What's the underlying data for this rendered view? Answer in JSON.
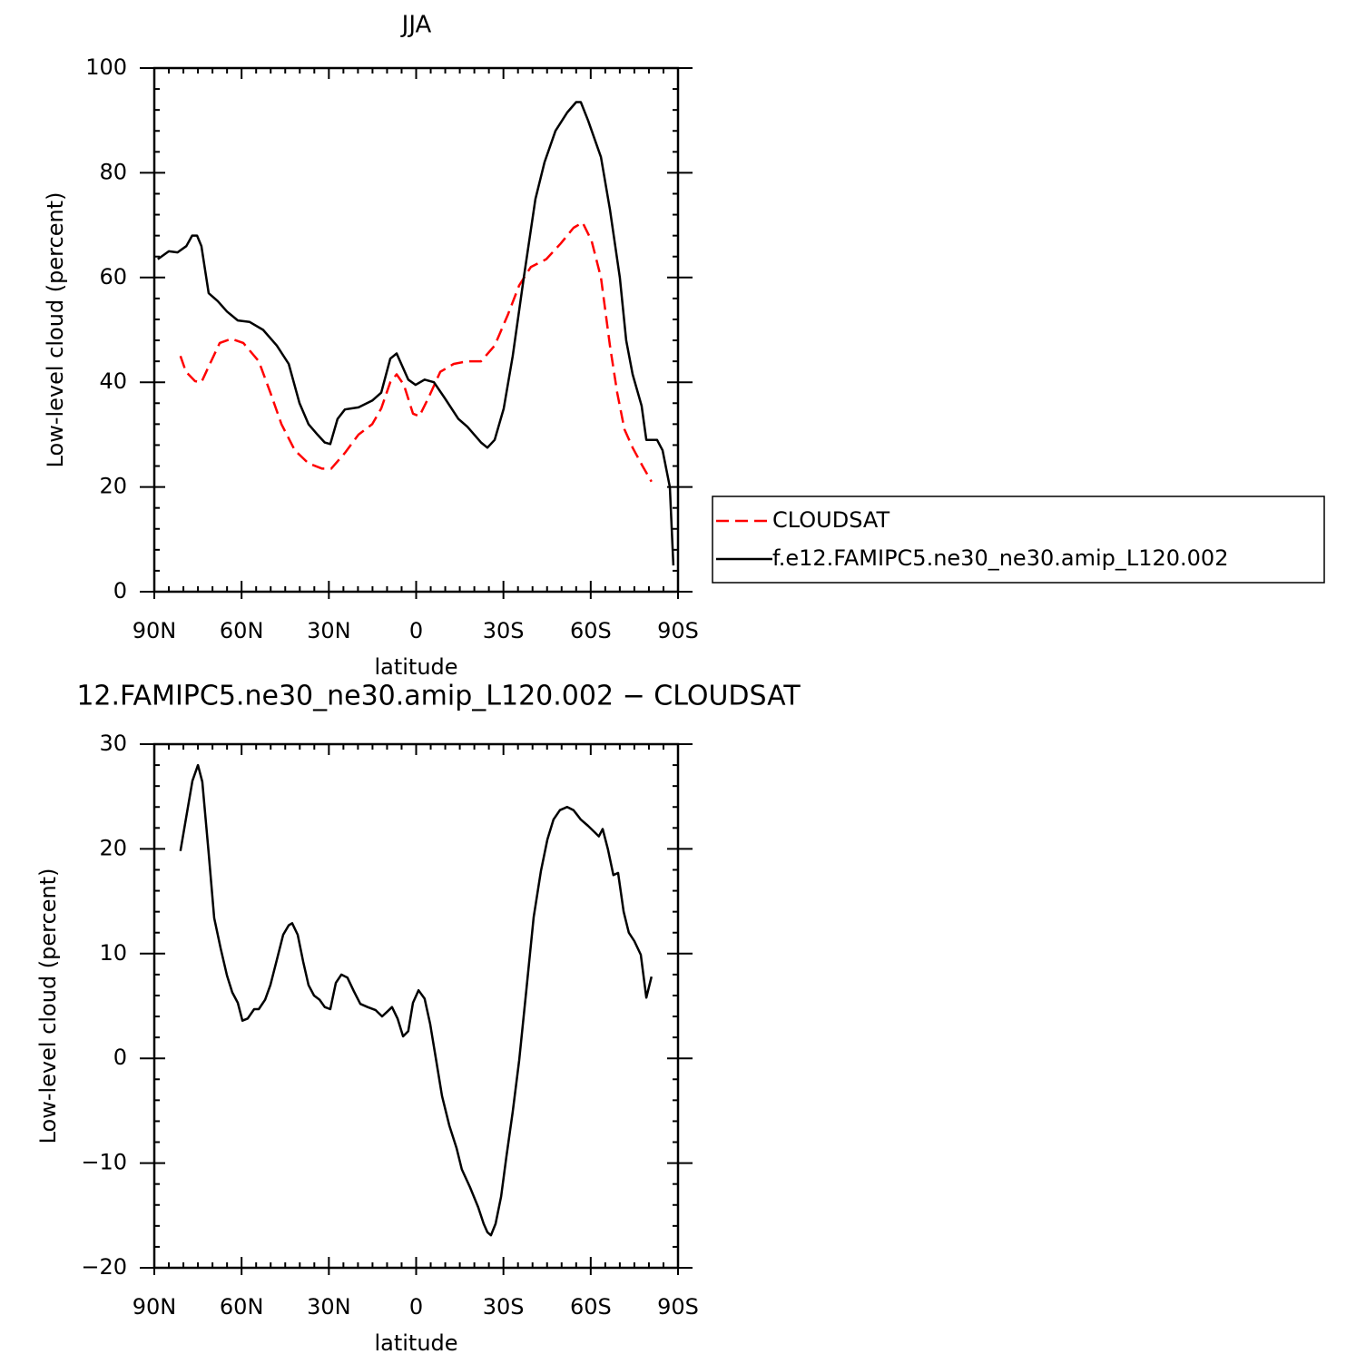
{
  "chart_data": [
    {
      "type": "line",
      "title": "JJA",
      "xlabel": "latitude",
      "ylabel": "Low-level cloud (percent)",
      "xlim": [
        90,
        -90
      ],
      "xticks": [
        {
          "value": 90,
          "label": "90N"
        },
        {
          "value": 60,
          "label": "60N"
        },
        {
          "value": 30,
          "label": "30N"
        },
        0,
        {
          "value": -30,
          "label": "30S"
        },
        {
          "value": -60,
          "label": "60S"
        },
        {
          "value": -90,
          "label": "90S"
        }
      ],
      "xminorticks": [
        85,
        80,
        75,
        70,
        65,
        55,
        50,
        45,
        40,
        35,
        25,
        20,
        15,
        10,
        5,
        -5,
        -10,
        -15,
        -20,
        -25,
        -35,
        -40,
        -45,
        -50,
        -55,
        -65,
        -70,
        -75,
        -80,
        -85
      ],
      "ylim": [
        0,
        100
      ],
      "yticks": [
        0,
        20,
        40,
        60,
        80,
        100
      ],
      "yminorticks": [
        4,
        8,
        12,
        16,
        24,
        28,
        32,
        36,
        44,
        48,
        52,
        56,
        64,
        68,
        72,
        76,
        84,
        88,
        92,
        96
      ],
      "legend": "right",
      "series": [
        {
          "name": "CLOUDSAT",
          "color": "#ff0000",
          "dashed": true,
          "x": [
            81,
            79.1,
            76,
            73.8,
            71.3,
            67.5,
            63.5,
            59.4,
            54.1,
            50.1,
            46.3,
            41.7,
            37,
            32.3,
            29.2,
            24.5,
            19.8,
            15.1,
            12,
            8.9,
            6.7,
            4.2,
            1.1,
            -1.1,
            -4.2,
            -8.3,
            -12.9,
            -17.6,
            -22.3,
            -27,
            -31.6,
            -35.4,
            -39.4,
            -44.7,
            -49.7,
            -54.1,
            -57.2,
            -60.3,
            -63.5,
            -66.6,
            -69.1,
            -71.6,
            -74.4,
            -77.8,
            -80.9
          ],
          "values": [
            45,
            42,
            40.2,
            40,
            43,
            47.5,
            48.3,
            47.5,
            44,
            38,
            32,
            27,
            24.5,
            23.5,
            23.5,
            26.5,
            30,
            32,
            35,
            40,
            41.5,
            39.5,
            34,
            33.5,
            37,
            42,
            43.5,
            44,
            44,
            47,
            53,
            58.5,
            62,
            63.5,
            66.5,
            69.5,
            70.5,
            67,
            60,
            47,
            38,
            31,
            27.5,
            24,
            21
          ]
        },
        {
          "name": "f.e12.FAMIPC5.ne30_ne30.amip_L120.002",
          "color": "#000000",
          "dashed": false,
          "x": [
            88.8,
            85,
            82,
            79,
            77,
            75.3,
            73.8,
            71.3,
            68.2,
            65,
            61.3,
            57.2,
            52.6,
            47.9,
            43.8,
            40.1,
            37,
            33.9,
            31.4,
            29.5,
            27,
            24.5,
            19.8,
            15.1,
            12,
            8.9,
            6.7,
            2.7,
            0.2,
            -2.9,
            -6.1,
            -9.8,
            -14.5,
            -17.6,
            -22.3,
            -24.5,
            -27,
            -30.1,
            -33.2,
            -37,
            -41,
            -44.1,
            -47.9,
            -51.9,
            -55,
            -56.6,
            -59.1,
            -63.5,
            -66.6,
            -70,
            -72.2,
            -74.4,
            -77.5,
            -79.1,
            -82.8,
            -84.7,
            -87.2,
            -88.4
          ],
          "values": [
            63.5,
            65,
            64.8,
            66,
            68,
            68,
            66,
            57,
            55.5,
            53.5,
            51.8,
            51.5,
            50,
            47,
            43.5,
            36,
            32,
            30,
            28.5,
            28.2,
            33,
            34.8,
            35.2,
            36.5,
            38,
            44.5,
            45.5,
            40.5,
            39.5,
            40.5,
            40,
            37,
            33,
            31.5,
            28.5,
            27.5,
            29,
            35,
            45,
            60,
            75,
            82,
            88,
            91.5,
            93.5,
            93.5,
            90,
            83,
            73,
            60,
            48,
            41.5,
            35.5,
            29,
            29,
            27,
            20,
            5
          ]
        }
      ]
    },
    {
      "type": "line",
      "title": "12.FAMIPC5.ne30_ne30.amip_L120.002 − CLOUDSAT",
      "xlabel": "latitude",
      "ylabel": "Low-level cloud (percent)",
      "xlim": [
        90,
        -90
      ],
      "xticks": [
        {
          "value": 90,
          "label": "90N"
        },
        {
          "value": 60,
          "label": "60N"
        },
        {
          "value": 30,
          "label": "30N"
        },
        0,
        {
          "value": -30,
          "label": "30S"
        },
        {
          "value": -60,
          "label": "60S"
        },
        {
          "value": -90,
          "label": "90S"
        }
      ],
      "xminorticks": [
        85,
        80,
        75,
        70,
        65,
        55,
        50,
        45,
        40,
        35,
        25,
        20,
        15,
        10,
        5,
        -5,
        -10,
        -15,
        -20,
        -25,
        -35,
        -40,
        -45,
        -50,
        -55,
        -65,
        -70,
        -75,
        -80,
        -85
      ],
      "ylim": [
        -20,
        30
      ],
      "yticks": [
        {
          "value": -20,
          "label": "−20"
        },
        {
          "value": -10,
          "label": "−10"
        },
        0,
        10,
        20,
        30
      ],
      "yminorticks": [
        -18,
        -16,
        -14,
        -12,
        -8,
        -6,
        -4,
        -2,
        2,
        4,
        6,
        8,
        12,
        14,
        16,
        18,
        22,
        24,
        26,
        28
      ],
      "series": [
        {
          "color": "#000000",
          "dashed": false,
          "x": [
            81,
            76.9,
            75,
            73.5,
            71.3,
            69.4,
            67.2,
            65,
            63.2,
            61.3,
            59.7,
            57.9,
            55.7,
            54.1,
            51.9,
            50.1,
            47.9,
            45.7,
            43.8,
            42.6,
            40.7,
            38.8,
            37,
            35.1,
            33.2,
            31.4,
            29.5,
            27.6,
            25.7,
            23.6,
            21.4,
            19.2,
            16.7,
            13.9,
            11.7,
            9.8,
            8.3,
            6.4,
            4.5,
            2.7,
            1.1,
            -0.8,
            -2.9,
            -4.8,
            -6.7,
            -8.9,
            -11.4,
            -13.9,
            -15.7,
            -18.5,
            -21.3,
            -23.2,
            -24.5,
            -25.7,
            -27.3,
            -29.2,
            -31,
            -33.2,
            -35.4,
            -37.9,
            -40.4,
            -42.9,
            -45.1,
            -47.2,
            -49.4,
            -51.9,
            -54.1,
            -56.6,
            -59.1,
            -61.3,
            -62.8,
            -64.1,
            -65.9,
            -67.8,
            -69.4,
            -71.3,
            -73.1,
            -75,
            -77.2,
            -79.1,
            -80.9
          ],
          "values": [
            19.8,
            26.5,
            28,
            26.4,
            19.6,
            13.4,
            10.5,
            7.9,
            6.3,
            5.3,
            3.6,
            3.8,
            4.7,
            4.7,
            5.6,
            7,
            9.4,
            11.8,
            12.7,
            12.9,
            11.8,
            9.2,
            7,
            6,
            5.6,
            4.9,
            4.7,
            7.2,
            8,
            7.7,
            6.4,
            5.2,
            4.9,
            4.6,
            4,
            4.5,
            4.9,
            3.8,
            2.1,
            2.6,
            5.3,
            6.5,
            5.7,
            3.3,
            0.1,
            -3.6,
            -6.4,
            -8.6,
            -10.6,
            -12.3,
            -14.2,
            -15.8,
            -16.6,
            -16.9,
            -15.8,
            -13.2,
            -9.4,
            -5.1,
            -0.2,
            6.6,
            13.5,
            17.9,
            20.9,
            22.8,
            23.7,
            24,
            23.7,
            22.8,
            22.2,
            21.6,
            21.2,
            21.9,
            20,
            17.5,
            17.7,
            14,
            12,
            11.2,
            9.9,
            5.8,
            7.8
          ]
        }
      ]
    }
  ]
}
